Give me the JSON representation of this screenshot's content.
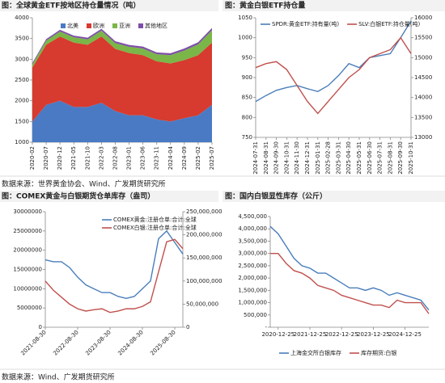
{
  "chart_data": [
    {
      "type": "area",
      "title": "图：全球黄金ETF按地区持仓量情况（吨）",
      "categories": [
        "2020-02",
        "2020-07",
        "2020-12",
        "2021-05",
        "2021-10",
        "2022-03",
        "2022-08",
        "2023-01",
        "2023-06",
        "2023-11",
        "2024-04",
        "2024-09",
        "2025-02",
        "2025-07"
      ],
      "series": [
        {
          "name": "北美",
          "color": "#4a7ac4",
          "values": [
            1500,
            1900,
            2000,
            1850,
            1850,
            1950,
            1750,
            1650,
            1650,
            1550,
            1500,
            1580,
            1650,
            1900
          ]
        },
        {
          "name": "欧洲",
          "color": "#d73a2e",
          "values": [
            1300,
            1450,
            1550,
            1550,
            1500,
            1600,
            1500,
            1500,
            1450,
            1400,
            1400,
            1400,
            1450,
            1500
          ]
        },
        {
          "name": "亚洲",
          "color": "#7ab648",
          "values": [
            80,
            100,
            120,
            130,
            130,
            140,
            140,
            150,
            160,
            170,
            200,
            230,
            260,
            300
          ]
        },
        {
          "name": "其他地区",
          "color": "#7e4fa8",
          "values": [
            30,
            35,
            40,
            40,
            40,
            45,
            45,
            45,
            45,
            45,
            45,
            50,
            50,
            55
          ]
        }
      ],
      "ylim": [
        1000,
        4000
      ],
      "yticks": [
        1000,
        1500,
        2000,
        2500,
        3000,
        3500,
        4000
      ],
      "legend": "top"
    },
    {
      "type": "line",
      "title": "图：黄金白银ETF持仓量",
      "categories": [
        "2024-07-31",
        "2024-08-31",
        "2024-09-30",
        "2024-10-31",
        "2024-11-30",
        "2024-12-31",
        "2025-01-31",
        "2025-02-28",
        "2025-03-31",
        "2025-04-30",
        "2025-05-31",
        "2025-06-30",
        "2025-07-31",
        "2025-08-31",
        "2025-09-30",
        "2025-10-31"
      ],
      "series": [
        {
          "name": "SPDR:黄金ETF:持有量(吨)",
          "color": "#4a7ebb",
          "values": [
            840,
            855,
            868,
            875,
            880,
            872,
            865,
            880,
            905,
            935,
            925,
            950,
            955,
            960,
            1000,
            1042
          ]
        },
        {
          "name": "SLV:白银ETF:持仓量(吨)",
          "color": "#c0504d",
          "axis": "y2",
          "values": [
            14750,
            14850,
            14900,
            14700,
            14300,
            13900,
            13600,
            13900,
            14200,
            14500,
            14700,
            15000,
            15100,
            15200,
            15500,
            15100
          ]
        }
      ],
      "ylim": [
        750,
        1050
      ],
      "yticks": [
        750,
        800,
        850,
        900,
        950,
        1000,
        1050
      ],
      "y2lim": [
        13000,
        16000
      ],
      "y2ticks": [
        13000,
        13500,
        14000,
        14500,
        15000,
        15500,
        16000
      ],
      "legend": "top"
    },
    {
      "type": "line",
      "title": "图：COMEX黄金与白银期货仓单库存（盎司）",
      "categories": [
        "2021-08-30",
        null,
        null,
        null,
        "2022-08-30",
        null,
        null,
        null,
        "2023-08-30",
        null,
        null,
        null,
        "2024-08-30",
        null,
        null,
        null,
        "2025-08-30",
        null
      ],
      "series": [
        {
          "name": "COMEX黄金:注册仓单:合计:全球",
          "color": "#4a7ebb",
          "values": [
            17500000,
            17000000,
            17000000,
            15500000,
            13000000,
            11000000,
            10000000,
            9000000,
            9000000,
            8000000,
            7500000,
            8000000,
            10000000,
            12000000,
            23000000,
            25000000,
            22000000,
            19000000
          ]
        },
        {
          "name": "COMEX白银:注册仓单:合计:全球",
          "color": "#c0504d",
          "axis": "y2",
          "values": [
            100000000,
            80000000,
            65000000,
            50000000,
            40000000,
            35000000,
            38000000,
            40000000,
            32000000,
            35000000,
            40000000,
            40000000,
            45000000,
            55000000,
            120000000,
            185000000,
            190000000,
            170000000
          ]
        }
      ],
      "ylim": [
        0,
        30000000
      ],
      "yticks": [
        0,
        {
          "value": 5000000,
          "label": "5000000"
        },
        {
          "value": 10000000,
          "label": "10000000"
        },
        {
          "value": 15000000,
          "label": "15000000"
        },
        {
          "value": 20000000,
          "label": "20000000"
        },
        {
          "value": 25000000,
          "label": "25000000"
        },
        {
          "value": 30000000,
          "label": "30000000"
        }
      ],
      "y2lim": [
        0,
        250000000
      ],
      "y2ticks": [
        0,
        {
          "value": 50000000,
          "label": "50,000,000"
        },
        {
          "value": 100000000,
          "label": "100,000,000"
        },
        {
          "value": 150000000,
          "label": "150,000,000"
        },
        {
          "value": 200000000,
          "label": "200,000,000"
        },
        {
          "value": 250000000,
          "label": "250,000,000"
        }
      ],
      "legend": "top"
    },
    {
      "type": "line",
      "title": "图：国内白银显性库存（公斤）",
      "categories": [
        null,
        "2020-12-25",
        null,
        null,
        null,
        "2021-12-25",
        null,
        null,
        null,
        "2022-12-25",
        null,
        null,
        null,
        "2023-12-25",
        null,
        null,
        null,
        "2024-12-25",
        null,
        null,
        null
      ],
      "series": [
        {
          "name": "上海金交所白银库存",
          "color": "#4a7ebb",
          "values": [
            4100000,
            3800000,
            3300000,
            2800000,
            2500000,
            2400000,
            2200000,
            2200000,
            2000000,
            1800000,
            1600000,
            1600000,
            1500000,
            1600000,
            1500000,
            1300000,
            1400000,
            1300000,
            1200000,
            1100000,
            700000
          ]
        },
        {
          "name": "库存期货:白银",
          "color": "#c0504d",
          "values": [
            3000000,
            3000000,
            2600000,
            2300000,
            2200000,
            2000000,
            1700000,
            1600000,
            1500000,
            1300000,
            1200000,
            1100000,
            1000000,
            900000,
            900000,
            800000,
            1100000,
            1000000,
            1000000,
            1000000,
            550000
          ]
        }
      ],
      "ylim": [
        0,
        4500000
      ],
      "yticks": [
        {
          "value": 0,
          "label": "-"
        },
        {
          "value": 500000,
          "label": "500,000"
        },
        {
          "value": 1000000,
          "label": "1,000,000"
        },
        {
          "value": 1500000,
          "label": "1,500,000"
        },
        {
          "value": 2000000,
          "label": "2,000,000"
        },
        {
          "value": 2500000,
          "label": "2,500,000"
        },
        {
          "value": 3000000,
          "label": "3,000,000"
        },
        {
          "value": 3500000,
          "label": "3,500,000"
        },
        {
          "value": 4000000,
          "label": "4,000,000"
        },
        {
          "value": 4500000,
          "label": "4,500,000"
        }
      ],
      "legend": "bottom"
    }
  ],
  "sources": [
    "数据来源：世界黄金协会、Wind、广发期货研究所",
    "数据来源：Wind、广发期货研究所"
  ]
}
